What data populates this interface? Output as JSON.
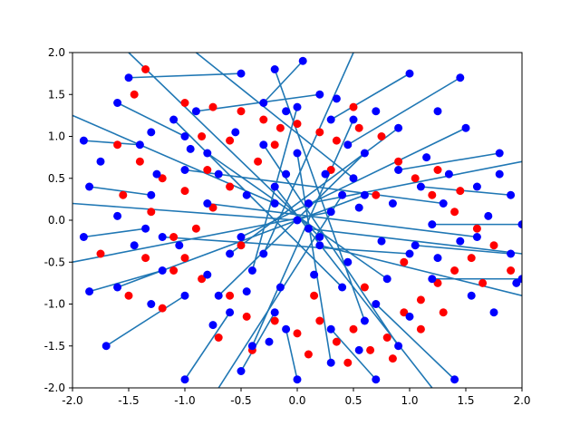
{
  "chart_data": {
    "type": "scatter",
    "title": "",
    "xlabel": "",
    "ylabel": "",
    "xlim": [
      -2.0,
      2.0
    ],
    "ylim": [
      -2.0,
      2.0
    ],
    "grid": false,
    "x_ticks": [
      "-2.0",
      "-1.5",
      "-1.0",
      "-0.5",
      "0.0",
      "0.5",
      "1.0",
      "1.5",
      "2.0"
    ],
    "y_ticks": [
      "-2.0",
      "-1.5",
      "-1.0",
      "-0.5",
      "0.0",
      "0.5",
      "1.0",
      "1.5",
      "2.0"
    ],
    "x_tick_values": [
      -2.0,
      -1.5,
      -1.0,
      -0.5,
      0.0,
      0.5,
      1.0,
      1.5,
      2.0
    ],
    "y_tick_values": [
      -2.0,
      -1.5,
      -1.0,
      -0.5,
      0.0,
      0.5,
      1.0,
      1.5,
      2.0
    ],
    "colors": {
      "line": "#1f77b4",
      "blue_points": "#0000ff",
      "red_points": "#ff0000"
    },
    "series": [
      {
        "color": "#1f77b4",
        "marker": "line",
        "segments": [
          [
            [
              -0.5,
              1.75
            ],
            [
              -1.5,
              1.7
            ]
          ],
          [
            [
              0.05,
              1.9
            ],
            [
              -0.3,
              1.4
            ]
          ],
          [
            [
              0.2,
              1.5
            ],
            [
              -0.9,
              1.3
            ]
          ],
          [
            [
              1.0,
              1.75
            ],
            [
              0.3,
              1.2
            ]
          ],
          [
            [
              1.45,
              1.7
            ],
            [
              0.45,
              0.9
            ]
          ],
          [
            [
              1.8,
              0.8
            ],
            [
              0.9,
              0.6
            ]
          ],
          [
            [
              1.9,
              0.3
            ],
            [
              1.1,
              0.4
            ]
          ],
          [
            [
              2.0,
              -0.05
            ],
            [
              1.2,
              -0.05
            ]
          ],
          [
            [
              1.9,
              -0.4
            ],
            [
              1.05,
              -0.3
            ]
          ],
          [
            [
              2.0,
              -0.7
            ],
            [
              1.2,
              -0.7
            ]
          ],
          [
            [
              1.4,
              -1.9
            ],
            [
              0.7,
              -1.0
            ]
          ],
          [
            [
              0.7,
              -1.9
            ],
            [
              0.3,
              -1.3
            ]
          ],
          [
            [
              0.0,
              -1.9
            ],
            [
              -0.1,
              -1.3
            ]
          ],
          [
            [
              -0.5,
              -1.8
            ],
            [
              -0.2,
              -1.1
            ]
          ],
          [
            [
              -1.0,
              -1.9
            ],
            [
              -0.6,
              -1.1
            ]
          ],
          [
            [
              -1.7,
              -1.5
            ],
            [
              -1.0,
              -0.9
            ]
          ],
          [
            [
              -1.85,
              -0.85
            ],
            [
              -1.2,
              -0.6
            ]
          ],
          [
            [
              -1.9,
              -0.2
            ],
            [
              -1.35,
              -0.1
            ]
          ],
          [
            [
              -1.85,
              0.4
            ],
            [
              -1.3,
              0.3
            ]
          ],
          [
            [
              -1.9,
              0.95
            ],
            [
              -1.4,
              0.9
            ]
          ],
          [
            [
              -1.6,
              1.4
            ],
            [
              -1.0,
              1.0
            ]
          ],
          [
            [
              -2.0,
              0.2
            ],
            [
              0.0,
              0.0
            ]
          ],
          [
            [
              -2.0,
              -0.5
            ],
            [
              0.3,
              0.1
            ]
          ],
          [
            [
              -2.0,
              1.25
            ],
            [
              -0.2,
              0.2
            ]
          ],
          [
            [
              2.0,
              -0.4
            ],
            [
              0.1,
              -0.1
            ]
          ],
          [
            [
              2.0,
              -0.9
            ],
            [
              0.2,
              -0.3
            ]
          ],
          [
            [
              2.0,
              0.7
            ],
            [
              0.1,
              0.2
            ]
          ],
          [
            [
              -0.9,
              2.0
            ],
            [
              0.5,
              0.5
            ]
          ],
          [
            [
              0.5,
              2.0
            ],
            [
              -0.3,
              -0.4
            ]
          ],
          [
            [
              1.2,
              -2.0
            ],
            [
              -0.2,
              0.4
            ]
          ],
          [
            [
              -0.7,
              -2.0
            ],
            [
              0.4,
              0.3
            ]
          ],
          [
            [
              -1.5,
              2.0
            ],
            [
              0.2,
              -0.2
            ]
          ],
          [
            [
              0.0,
              1.35
            ],
            [
              -0.4,
              -0.6
            ]
          ],
          [
            [
              0.9,
              1.1
            ],
            [
              -0.6,
              -0.4
            ]
          ],
          [
            [
              1.3,
              0.2
            ],
            [
              -1.0,
              0.6
            ]
          ],
          [
            [
              -1.2,
              -0.2
            ],
            [
              1.0,
              -0.4
            ]
          ],
          [
            [
              -0.8,
              0.8
            ],
            [
              0.8,
              -0.7
            ]
          ],
          [
            [
              0.6,
              0.8
            ],
            [
              -0.7,
              -0.9
            ]
          ],
          [
            [
              -0.4,
              -1.5
            ],
            [
              0.5,
              1.2
            ]
          ],
          [
            [
              0.9,
              -1.5
            ],
            [
              -0.3,
              0.9
            ]
          ],
          [
            [
              -1.1,
              1.2
            ],
            [
              0.4,
              -0.8
            ]
          ],
          [
            [
              1.5,
              1.1
            ],
            [
              -0.5,
              -0.2
            ]
          ],
          [
            [
              -1.6,
              -0.8
            ],
            [
              0.6,
              0.3
            ]
          ],
          [
            [
              1.6,
              -0.2
            ],
            [
              -0.8,
              0.2
            ]
          ],
          [
            [
              0.3,
              -1.7
            ],
            [
              0.0,
              0.8
            ]
          ],
          [
            [
              -0.2,
              1.8
            ],
            [
              0.6,
              -1.2
            ]
          ]
        ]
      },
      {
        "color": "#ff0000",
        "marker": "o",
        "points": [
          [
            -1.35,
            1.8
          ],
          [
            -1.45,
            1.5
          ],
          [
            -1.0,
            1.4
          ],
          [
            -0.75,
            1.35
          ],
          [
            -0.5,
            1.3
          ],
          [
            -0.3,
            1.2
          ],
          [
            -0.15,
            1.1
          ],
          [
            0.0,
            1.15
          ],
          [
            0.2,
            1.05
          ],
          [
            0.35,
            0.95
          ],
          [
            0.55,
            1.1
          ],
          [
            0.75,
            1.0
          ],
          [
            -1.6,
            0.9
          ],
          [
            -1.4,
            0.7
          ],
          [
            -1.2,
            0.5
          ],
          [
            -1.0,
            0.35
          ],
          [
            -0.8,
            0.6
          ],
          [
            -0.6,
            0.4
          ],
          [
            -1.3,
            0.1
          ],
          [
            -1.1,
            -0.2
          ],
          [
            -0.9,
            -0.1
          ],
          [
            -1.35,
            -0.45
          ],
          [
            -1.1,
            -0.6
          ],
          [
            -0.85,
            -0.7
          ],
          [
            -0.6,
            -0.9
          ],
          [
            -0.45,
            -1.15
          ],
          [
            -0.2,
            -1.2
          ],
          [
            0.0,
            -1.35
          ],
          [
            0.2,
            -1.2
          ],
          [
            0.35,
            -1.45
          ],
          [
            0.5,
            -1.3
          ],
          [
            0.65,
            -1.55
          ],
          [
            0.8,
            -1.4
          ],
          [
            0.95,
            -1.1
          ],
          [
            1.1,
            -0.95
          ],
          [
            1.25,
            -0.75
          ],
          [
            1.4,
            -0.6
          ],
          [
            1.55,
            -0.45
          ],
          [
            1.75,
            -0.3
          ],
          [
            1.6,
            -0.1
          ],
          [
            1.4,
            0.1
          ],
          [
            1.2,
            0.3
          ],
          [
            1.05,
            0.5
          ],
          [
            0.9,
            0.7
          ],
          [
            1.25,
            0.6
          ],
          [
            1.45,
            0.35
          ],
          [
            -0.35,
            0.7
          ],
          [
            -0.6,
            0.95
          ],
          [
            -0.85,
            1.0
          ],
          [
            -1.55,
            0.3
          ],
          [
            -1.75,
            -0.4
          ],
          [
            -1.5,
            -0.9
          ],
          [
            -1.2,
            -1.05
          ],
          [
            -0.7,
            -1.4
          ],
          [
            -0.4,
            -1.55
          ],
          [
            0.1,
            -1.6
          ],
          [
            0.45,
            -1.7
          ],
          [
            0.85,
            -1.65
          ],
          [
            1.1,
            -1.3
          ],
          [
            1.3,
            -1.1
          ],
          [
            1.65,
            -0.75
          ],
          [
            1.9,
            -0.6
          ],
          [
            0.6,
            -0.8
          ],
          [
            -0.5,
            -0.3
          ],
          [
            0.3,
            0.6
          ],
          [
            -0.2,
            0.9
          ],
          [
            0.15,
            -0.9
          ],
          [
            0.7,
            0.3
          ],
          [
            -0.75,
            0.15
          ],
          [
            0.95,
            -0.5
          ],
          [
            -1.0,
            -0.45
          ],
          [
            0.5,
            1.35
          ]
        ]
      },
      {
        "color": "#0000ff",
        "marker": "o",
        "points": [
          [
            -0.5,
            1.75
          ],
          [
            -1.5,
            1.7
          ],
          [
            0.05,
            1.9
          ],
          [
            -0.3,
            1.4
          ],
          [
            0.2,
            1.5
          ],
          [
            -0.9,
            1.3
          ],
          [
            1.0,
            1.75
          ],
          [
            0.3,
            1.2
          ],
          [
            1.45,
            1.7
          ],
          [
            0.45,
            0.9
          ],
          [
            1.8,
            0.8
          ],
          [
            0.9,
            0.6
          ],
          [
            1.9,
            0.3
          ],
          [
            1.1,
            0.4
          ],
          [
            2.0,
            -0.05
          ],
          [
            1.2,
            -0.05
          ],
          [
            1.9,
            -0.4
          ],
          [
            1.05,
            -0.3
          ],
          [
            2.0,
            -0.7
          ],
          [
            1.2,
            -0.7
          ],
          [
            1.4,
            -1.9
          ],
          [
            0.7,
            -1.0
          ],
          [
            0.7,
            -1.9
          ],
          [
            0.3,
            -1.3
          ],
          [
            0.0,
            -1.9
          ],
          [
            -0.1,
            -1.3
          ],
          [
            -0.5,
            -1.8
          ],
          [
            -0.2,
            -1.1
          ],
          [
            -1.0,
            -1.9
          ],
          [
            -0.6,
            -1.1
          ],
          [
            -1.7,
            -1.5
          ],
          [
            -1.0,
            -0.9
          ],
          [
            -1.85,
            -0.85
          ],
          [
            -1.2,
            -0.6
          ],
          [
            -1.9,
            -0.2
          ],
          [
            -1.35,
            -0.1
          ],
          [
            -1.85,
            0.4
          ],
          [
            -1.3,
            0.3
          ],
          [
            -1.9,
            0.95
          ],
          [
            -1.4,
            0.9
          ],
          [
            -1.6,
            1.4
          ],
          [
            -1.0,
            1.0
          ],
          [
            0.0,
            0.0
          ],
          [
            0.3,
            0.1
          ],
          [
            -0.2,
            0.2
          ],
          [
            0.1,
            -0.1
          ],
          [
            0.2,
            -0.3
          ],
          [
            0.1,
            0.2
          ],
          [
            0.5,
            0.5
          ],
          [
            -0.3,
            -0.4
          ],
          [
            -0.2,
            0.4
          ],
          [
            0.4,
            0.3
          ],
          [
            0.2,
            -0.2
          ],
          [
            -0.4,
            -0.6
          ],
          [
            -0.6,
            -0.4
          ],
          [
            -1.0,
            0.6
          ],
          [
            1.0,
            -0.4
          ],
          [
            0.8,
            -0.7
          ],
          [
            -0.7,
            -0.9
          ],
          [
            0.5,
            1.2
          ],
          [
            -0.3,
            0.9
          ],
          [
            0.4,
            -0.8
          ],
          [
            -0.5,
            -0.2
          ],
          [
            0.6,
            0.3
          ],
          [
            -0.8,
            0.2
          ],
          [
            0.0,
            0.8
          ],
          [
            0.6,
            -1.2
          ],
          [
            0.0,
            1.35
          ],
          [
            0.9,
            1.1
          ],
          [
            1.3,
            0.2
          ],
          [
            -1.2,
            -0.2
          ],
          [
            -0.8,
            0.8
          ],
          [
            0.6,
            0.8
          ],
          [
            -0.4,
            -1.5
          ],
          [
            0.9,
            -1.5
          ],
          [
            -1.1,
            1.2
          ],
          [
            1.5,
            1.1
          ],
          [
            -1.6,
            -0.8
          ],
          [
            1.6,
            -0.2
          ],
          [
            0.3,
            -1.7
          ],
          [
            -0.2,
            1.8
          ],
          [
            -1.3,
            1.05
          ],
          [
            -0.95,
            0.85
          ],
          [
            -0.7,
            0.55
          ],
          [
            -0.45,
            0.3
          ],
          [
            0.25,
            0.55
          ],
          [
            0.55,
            0.15
          ],
          [
            0.85,
            0.2
          ],
          [
            1.15,
            0.75
          ],
          [
            1.35,
            0.55
          ],
          [
            1.6,
            0.4
          ],
          [
            1.7,
            0.05
          ],
          [
            1.45,
            -0.25
          ],
          [
            1.25,
            -0.45
          ],
          [
            0.75,
            -0.25
          ],
          [
            0.45,
            -0.5
          ],
          [
            0.15,
            -0.65
          ],
          [
            -0.15,
            -0.8
          ],
          [
            -0.45,
            -0.85
          ],
          [
            -0.8,
            -0.65
          ],
          [
            -1.05,
            -0.3
          ],
          [
            -1.25,
            0.55
          ],
          [
            -1.45,
            -0.3
          ],
          [
            -1.6,
            0.05
          ],
          [
            -0.1,
            0.55
          ],
          [
            0.35,
            1.45
          ],
          [
            0.7,
            1.3
          ],
          [
            1.25,
            1.3
          ],
          [
            -0.55,
            1.05
          ],
          [
            -0.1,
            1.3
          ],
          [
            1.0,
            -1.15
          ],
          [
            0.55,
            -1.55
          ],
          [
            -0.25,
            -1.45
          ],
          [
            -0.75,
            -1.25
          ],
          [
            -1.3,
            -1.0
          ],
          [
            1.55,
            -0.9
          ],
          [
            1.75,
            -1.1
          ],
          [
            1.95,
            -0.75
          ],
          [
            1.8,
            0.55
          ],
          [
            -1.75,
            0.7
          ]
        ]
      }
    ]
  }
}
